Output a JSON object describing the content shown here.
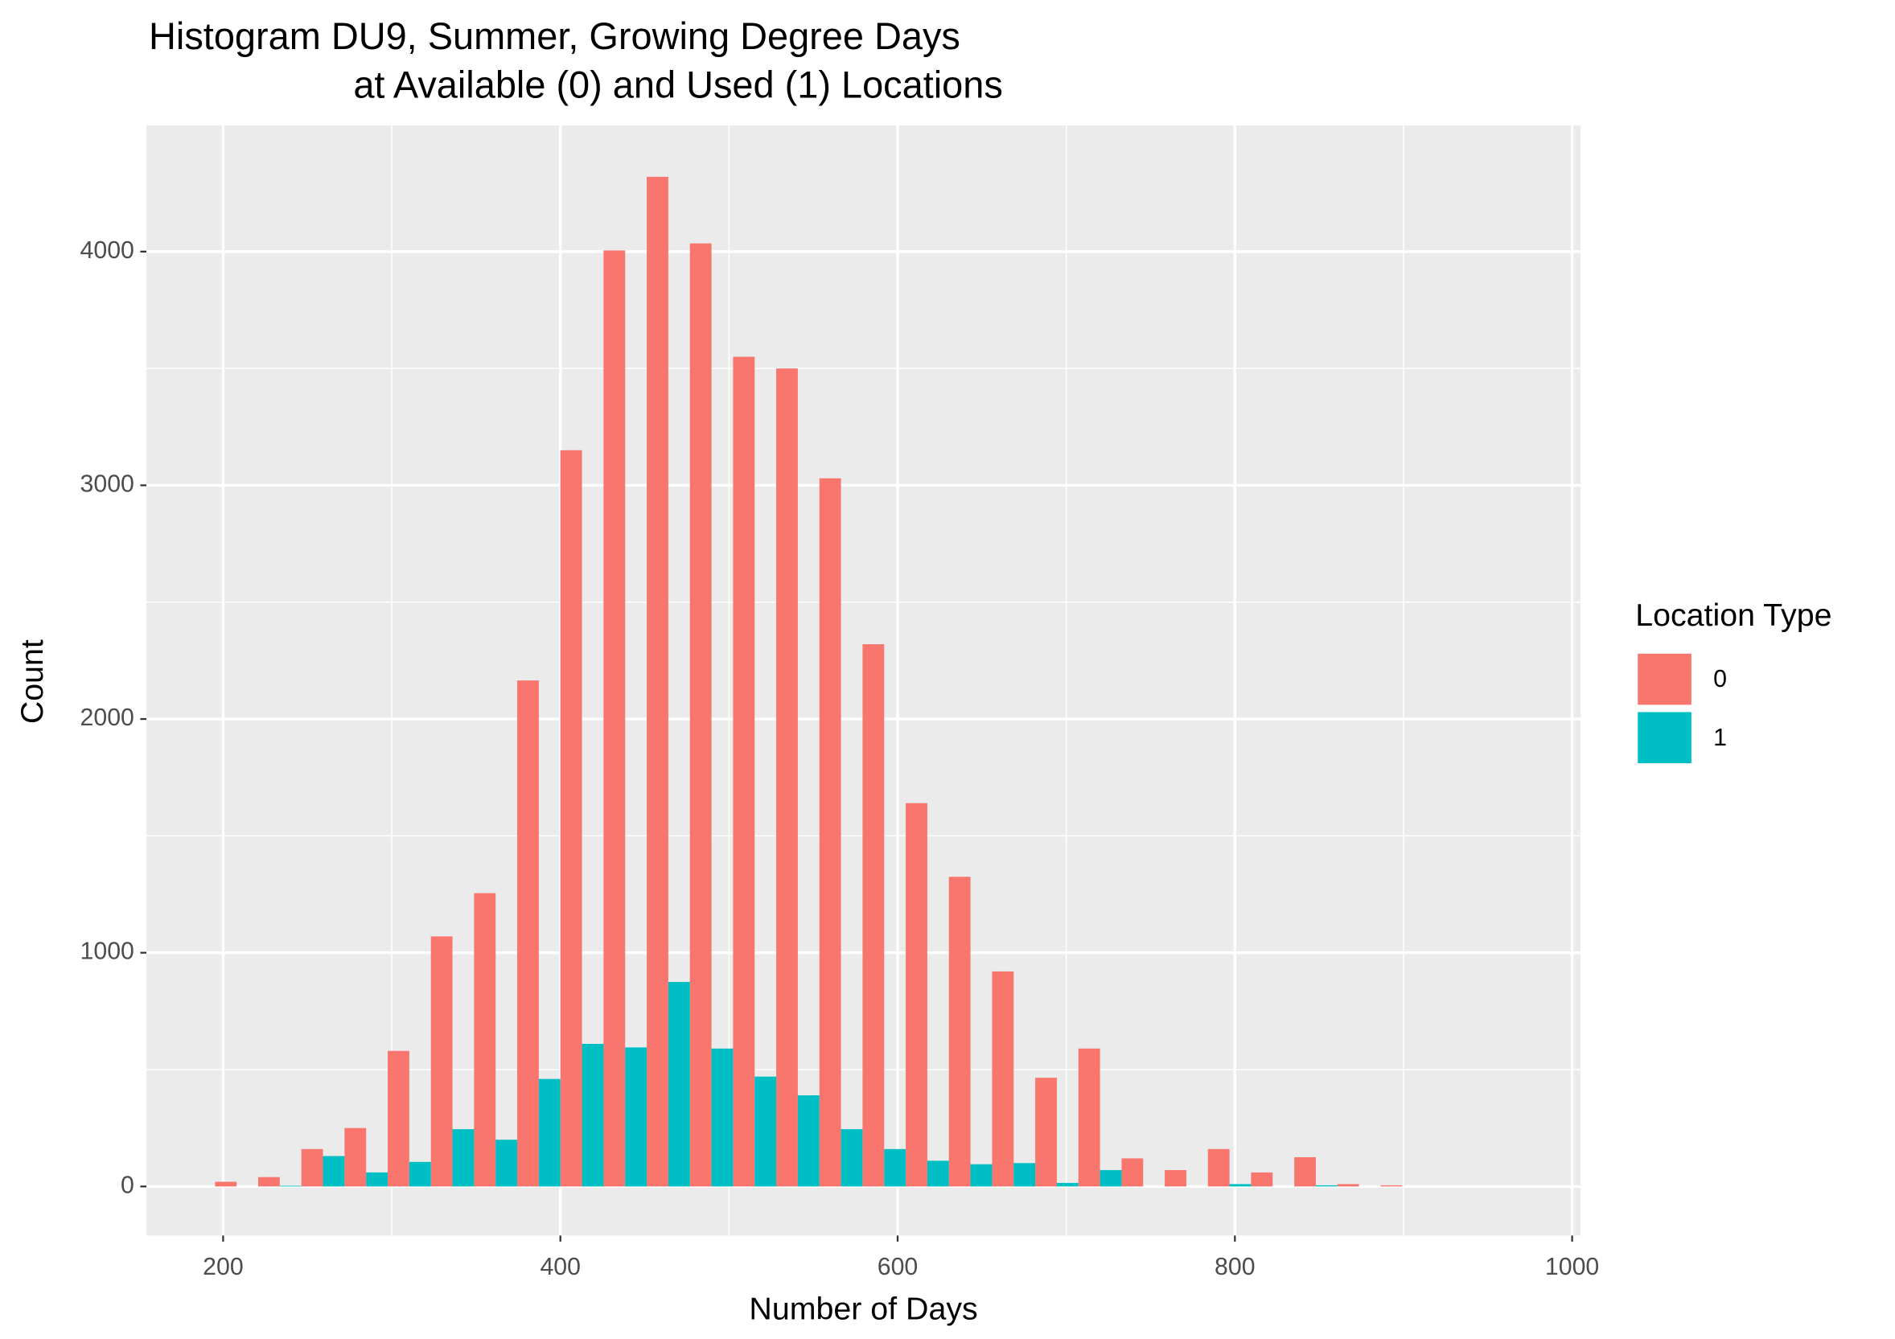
{
  "chart_data": {
    "type": "histogram",
    "title": [
      "Histogram DU9, Summer, Growing Degree Days",
      "at Available (0) and Used (1) Locations"
    ],
    "x_label": "Number of Days",
    "y_label": "Count",
    "legend_title": "Location Type",
    "legend_position": "right",
    "grid": true,
    "bins": [
      195.2,
      220.8,
      246.4,
      272,
      297.6,
      323.2,
      348.8,
      374.4,
      400,
      425.6,
      451.2,
      476.8,
      502.4,
      528,
      553.6,
      579.2,
      604.8,
      630.4,
      656,
      681.6,
      707.2,
      732.8,
      758.4,
      784,
      809.6,
      835.2,
      860.8,
      886.4,
      912,
      937.6,
      963.2
    ],
    "series": [
      {
        "name": "0",
        "color": "#F8766D",
        "values": [
          20,
          40,
          160,
          250,
          580,
          1070,
          1255,
          2165,
          3150,
          4005,
          4320,
          4035,
          3550,
          3500,
          3030,
          2320,
          1640,
          1325,
          920,
          465,
          590,
          120,
          70,
          160,
          60,
          125,
          10,
          5,
          0,
          0
        ]
      },
      {
        "name": "1",
        "color": "#00BFC4",
        "values": [
          0,
          3,
          130,
          60,
          105,
          245,
          200,
          460,
          610,
          595,
          875,
          590,
          470,
          390,
          245,
          160,
          110,
          95,
          100,
          15,
          70,
          0,
          0,
          10,
          0,
          5,
          0,
          0,
          0,
          0
        ]
      }
    ],
    "xlim": [
      154.5,
      1005
    ],
    "xticks": [
      200,
      400,
      600,
      800,
      1000
    ],
    "ylim": [
      -210,
      4540
    ],
    "yticks": [
      0,
      1000,
      2000,
      3000,
      4000
    ]
  }
}
